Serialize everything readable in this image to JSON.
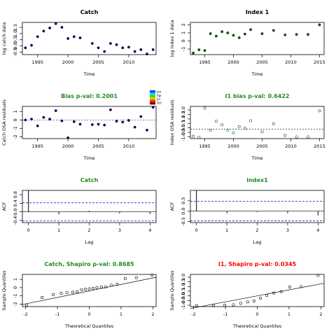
{
  "colors": {
    "title_green": "#228B22",
    "title_red": "#FF0000",
    "title_black": "#000000",
    "navy": "#000080",
    "forest": "#006400",
    "ref_blue": "#0000CD",
    "legend": [
      "#1F3DFF",
      "#00D8FF",
      "#00FF00",
      "#FFB000",
      "#FF3000",
      "#8B0000"
    ]
  },
  "legend_labels": [
    "Jan",
    "Apr",
    "Jul",
    "Oct"
  ],
  "chart_data": [
    {
      "id": "catch",
      "type": "scatter",
      "title": "Catch",
      "title_color": "title_black",
      "xlabel": "Time",
      "ylabel": "log catch data",
      "xlim": [
        1992.5,
        2014.5
      ],
      "ylim": [
        -0.7,
        1.9
      ],
      "xticks": [
        1995,
        2000,
        2005,
        2010
      ],
      "yticks": [
        -0.5,
        0,
        0.5,
        1,
        1.5
      ],
      "ytick_labels": [
        "-0.5",
        "0.0",
        "0.5",
        "1.0",
        "1.5"
      ],
      "marker": "filled",
      "color": "navy",
      "x": [
        1993,
        1994,
        1995,
        1996,
        1997,
        1998,
        1999,
        2000,
        2001,
        2002,
        2004,
        2005,
        2006,
        2007,
        2008,
        2009,
        2010,
        2011,
        2012,
        2013,
        2014
      ],
      "y": [
        -0.15,
        0.05,
        0.75,
        1.2,
        1.45,
        1.8,
        1.5,
        0.6,
        0.75,
        0.65,
        0.2,
        -0.15,
        -0.45,
        0.2,
        0.1,
        -0.15,
        -0.1,
        -0.45,
        -0.3,
        -0.65,
        -0.3
      ]
    },
    {
      "id": "index1",
      "type": "scatter",
      "title": "Index 1",
      "title_color": "title_black",
      "xlabel": "Time",
      "ylabel": "log index 1 data",
      "xlim": [
        1992.5,
        2015.8
      ],
      "ylim": [
        -1.7,
        2.3
      ],
      "xticks": [
        1995,
        2000,
        2005,
        2010,
        2015
      ],
      "yticks": [
        -1,
        0,
        1,
        2
      ],
      "ytick_labels": [
        "-1",
        "0",
        "1",
        "2"
      ],
      "marker": "filled",
      "color": "forest",
      "x": [
        1993,
        1994,
        1995,
        1996,
        1997,
        1998,
        1999,
        2000,
        2001,
        2002,
        2003,
        2005,
        2007,
        2009,
        2011,
        2013,
        2015
      ],
      "y": [
        -1.5,
        -1.1,
        -1.2,
        0.9,
        0.6,
        1.15,
        1.0,
        0.7,
        0.4,
        0.85,
        1.4,
        0.9,
        1.3,
        0.75,
        0.8,
        0.8,
        2.0
      ]
    },
    {
      "id": "catch-resid",
      "type": "scatter",
      "title": "Bias p-val: 0.2001",
      "title_color": "title_green",
      "xlabel": "Time",
      "ylabel": "Catch OSA residuals",
      "xlim": [
        1992.5,
        2014.5
      ],
      "ylim": [
        -2.2,
        1.6
      ],
      "xticks": [
        1995,
        2000,
        2005,
        2010
      ],
      "yticks": [
        -2,
        -1,
        0,
        1
      ],
      "ytick_labels": [
        "-2",
        "-1",
        "0",
        "1"
      ],
      "marker": "filled",
      "color": "navy",
      "hline": 0,
      "x": [
        1993,
        1994,
        1995,
        1996,
        1997,
        1998,
        1999,
        2000,
        2001,
        2002,
        2004,
        2005,
        2006,
        2007,
        2008,
        2009,
        2010,
        2011,
        2012,
        2013,
        2014
      ],
      "y": [
        0.0,
        0.1,
        -0.7,
        0.3,
        0.1,
        1.1,
        -0.1,
        -2.1,
        -0.2,
        -0.5,
        -0.55,
        -0.5,
        -0.6,
        1.2,
        -0.15,
        -0.25,
        -0.05,
        -0.85,
        0.4,
        -1.2,
        1.5
      ]
    },
    {
      "id": "index-resid",
      "type": "scatter",
      "title": "I1 bias p-val: 0.6422",
      "title_color": "title_green",
      "xlabel": "Time",
      "ylabel": "Index OSA residuals",
      "xlim": [
        1992.5,
        2015.8
      ],
      "ylim": [
        -1.2,
        2.4
      ],
      "xticks": [
        1995,
        2000,
        2005,
        2010,
        2015
      ],
      "yticks": [
        -1,
        -0.5,
        0,
        0.5,
        1,
        1.5,
        2
      ],
      "ytick_labels": [
        "-1.0",
        "-0.5",
        "0.0",
        "0.5",
        "1.0",
        "1.5",
        "2.0"
      ],
      "marker": "open",
      "color": "forest",
      "hline": -0.15,
      "x": [
        1993,
        1994,
        1995,
        1996,
        1997,
        1998,
        1999,
        2000,
        2001,
        2002,
        2003,
        2005,
        2007,
        2009,
        2011,
        2013,
        2015
      ],
      "y": [
        -0.95,
        -1.05,
        2.2,
        -0.25,
        0.75,
        0.35,
        -0.25,
        -0.55,
        0.15,
        -0.05,
        0.8,
        -0.45,
        0.45,
        -0.85,
        -1.0,
        -1.0,
        1.9
      ]
    },
    {
      "id": "acf-catch",
      "type": "bar",
      "title": "Catch",
      "title_color": "title_green",
      "xlabel": "Lag",
      "ylabel": "ACF",
      "xlim": [
        -0.2,
        4.2
      ],
      "ylim": [
        -0.5,
        1.0
      ],
      "xticks": [
        0,
        1,
        2,
        3,
        4
      ],
      "yticks": [
        -0.4,
        0,
        0.4,
        0.8
      ],
      "ytick_labels": [
        "-0.4",
        "0.0",
        "0.4",
        "0.8"
      ],
      "lags": [
        0,
        1,
        2,
        3,
        4
      ],
      "values": [
        1.0,
        -0.12,
        0.05,
        -0.07,
        -0.1
      ],
      "conf": 0.42
    },
    {
      "id": "acf-index",
      "type": "bar",
      "title": "Index1",
      "title_color": "title_green",
      "xlabel": "Lag",
      "ylabel": "ACF",
      "xlim": [
        -0.2,
        4.2
      ],
      "ylim": [
        -0.55,
        1.0
      ],
      "xticks": [
        0,
        1,
        2,
        3,
        4
      ],
      "yticks": [
        -0.5,
        0,
        0.5
      ],
      "ytick_labels": [
        "-0.5",
        "0.0",
        "0.5"
      ],
      "lags": [
        0,
        1,
        2,
        3,
        4
      ],
      "values": [
        1.0,
        -0.1,
        -0.05,
        -0.1,
        -0.2
      ],
      "conf": 0.47
    },
    {
      "id": "qq-catch",
      "type": "scatter",
      "title": "Catch, Shapiro p-val: 0.8685",
      "title_color": "title_green",
      "xlabel": "Theoretical Quantiles",
      "ylabel": "Sample Quantiles",
      "xlim": [
        -2.1,
        2.1
      ],
      "ylim": [
        -2.3,
        1.6
      ],
      "xticks": [
        -2,
        -1,
        0,
        1,
        2
      ],
      "yticks": [
        -2,
        -1,
        0,
        1
      ],
      "ytick_labels": [
        "-2",
        "-1",
        "0",
        "1"
      ],
      "marker": "open",
      "color": "title_black",
      "line": [
        [
          -2.1,
          -2.05
        ],
        [
          2.1,
          1.25
        ]
      ],
      "x": [
        -1.97,
        -1.48,
        -1.13,
        -0.88,
        -0.7,
        -0.52,
        -0.38,
        -0.24,
        -0.12,
        0.0,
        0.12,
        0.24,
        0.38,
        0.52,
        0.7,
        0.88,
        1.13,
        1.48,
        1.97
      ],
      "y": [
        -2.1,
        -1.2,
        -0.85,
        -0.7,
        -0.6,
        -0.55,
        -0.5,
        -0.25,
        -0.2,
        -0.15,
        -0.1,
        0.0,
        0.1,
        0.1,
        0.3,
        0.4,
        1.1,
        1.2,
        1.5
      ]
    },
    {
      "id": "qq-index",
      "type": "scatter",
      "title": "I1, Shapiro p-val: 0.0345",
      "title_color": "title_red",
      "xlabel": "Theoretical Quantiles",
      "ylabel": "Sample Quantiles",
      "xlim": [
        -2.1,
        2.1
      ],
      "ylim": [
        -1.15,
        2.3
      ],
      "xticks": [
        -2,
        -1,
        0,
        1,
        2
      ],
      "yticks": [
        -1,
        -0.5,
        0,
        0.5,
        1,
        1.5,
        2
      ],
      "ytick_labels": [
        "-1.0",
        "-0.5",
        "0.0",
        "0.5",
        "1.0",
        "1.5",
        "2.0"
      ],
      "marker": "open",
      "color": "title_black",
      "line": [
        [
          -2.1,
          -1.35
        ],
        [
          2.1,
          1.35
        ]
      ],
      "x": [
        -1.91,
        -1.38,
        -1.02,
        -0.75,
        -0.52,
        -0.3,
        -0.1,
        0.1,
        0.3,
        0.52,
        0.75,
        1.02,
        1.38,
        1.91
      ],
      "y": [
        -1.05,
        -1.0,
        -1.0,
        -0.95,
        -0.8,
        -0.65,
        -0.55,
        -0.25,
        0.05,
        0.3,
        0.45,
        0.95,
        1.0,
        2.2
      ]
    }
  ]
}
